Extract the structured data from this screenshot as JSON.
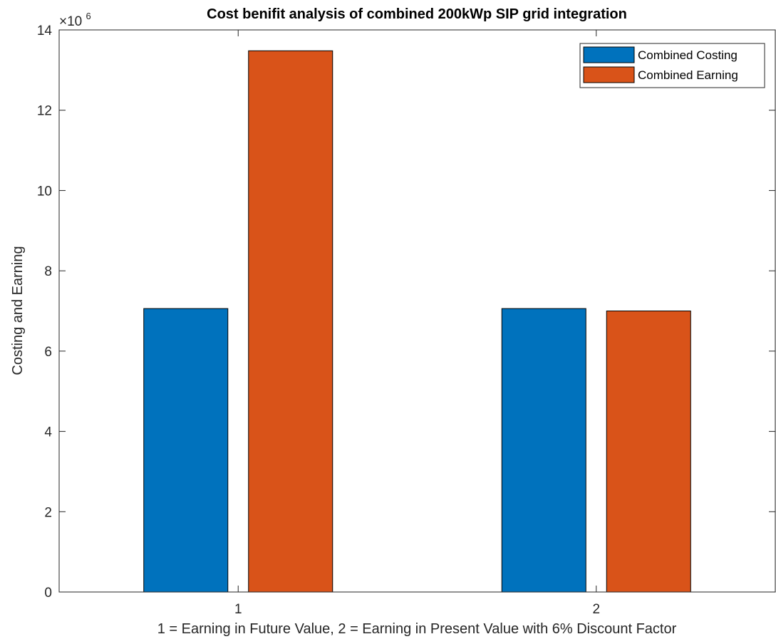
{
  "chart_data": {
    "type": "bar",
    "title": "Cost benifit analysis of combined 200kWp SIP grid integration",
    "xlabel": "1 = Earning in Future Value, 2 = Earning in Present Value with 6% Discount Factor",
    "ylabel": "Costing and Earning",
    "categories": [
      "1",
      "2"
    ],
    "series": [
      {
        "name": "Combined Costing",
        "color": "#0072BD",
        "values": [
          7060000,
          7060000
        ]
      },
      {
        "name": "Combined Earning",
        "color": "#D95319",
        "values": [
          13480000,
          7000000
        ]
      }
    ],
    "ylim": [
      0,
      14000000
    ],
    "yticks": [
      0,
      2000000,
      4000000,
      6000000,
      8000000,
      10000000,
      12000000,
      14000000
    ],
    "ytick_labels": [
      "0",
      "2",
      "4",
      "6",
      "8",
      "10",
      "12",
      "14"
    ],
    "y_exponent": {
      "base": "×10",
      "power": "6"
    },
    "legend_position": "top-right",
    "grid": false
  }
}
